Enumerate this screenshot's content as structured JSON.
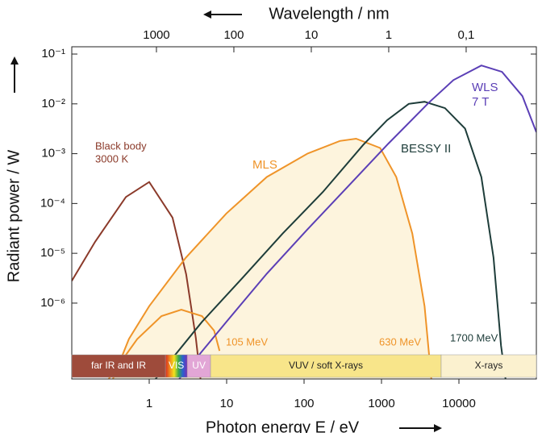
{
  "chart_data": {
    "type": "line",
    "x_scale": "log",
    "y_scale": "log",
    "xlabel": "Photon energy E / eV",
    "ylabel": "Radiant power / W",
    "x2label": "Wavelength / nm",
    "xlim": [
      0.1,
      100000
    ],
    "xticks": [
      1,
      10,
      100,
      1000,
      10000
    ],
    "x2lim": [
      12398.4,
      0.0123984
    ],
    "x2ticks": [
      1000,
      100,
      10,
      1,
      {
        "value": 0.1,
        "label": "0,1"
      }
    ],
    "ylim": [
      3e-08,
      0.14
    ],
    "yticks": [
      {
        "value": 0.1,
        "label": "10⁻¹"
      },
      {
        "value": 0.01,
        "label": "10⁻²"
      },
      {
        "value": 0.001,
        "label": "10⁻³"
      },
      {
        "value": 0.0001,
        "label": "10⁻⁴"
      },
      {
        "value": 1e-05,
        "label": "10⁻⁵"
      },
      {
        "value": 1e-06,
        "label": "10⁻⁶"
      }
    ],
    "series": [
      {
        "name": "Black body",
        "note": "3000 K",
        "color": "#8b3a2a",
        "x": [
          0.1,
          0.2,
          0.5,
          1,
          2,
          3,
          4,
          4.6
        ],
        "values": [
          2.8e-06,
          1.7e-05,
          0.000135,
          0.00027,
          5.2e-05,
          3.8e-06,
          2e-07,
          3e-08
        ]
      },
      {
        "name": "MLS",
        "energy": "630 MeV",
        "color": "#ef9429",
        "fill": "#fdf4dd",
        "x": [
          0.34,
          0.547,
          1,
          2.96,
          9.9,
          33,
          110,
          290,
          470,
          960,
          1550,
          2500,
          3600,
          4400
        ],
        "values": [
          3e-08,
          1.9e-07,
          8.7e-07,
          8.1e-06,
          6.3e-05,
          0.00034,
          0.001,
          0.0018,
          0.002,
          0.0013,
          0.00034,
          2.5e-05,
          8.7e-07,
          3e-08
        ]
      },
      {
        "energy": "105 MeV",
        "color": "#ef9429",
        "x": [
          0.3,
          0.7,
          1.44,
          2.6,
          4.8,
          6.9,
          8.1
        ],
        "values": [
          3e-08,
          1.9e-07,
          5.5e-07,
          7.4e-07,
          5.5e-07,
          2.8e-07,
          1.1e-07
        ]
      },
      {
        "name": "BESSY II",
        "energy": "1700 MeV",
        "color": "#1e3d3a",
        "x": [
          1.21,
          4.8,
          16,
          53,
          175,
          580,
          1180,
          2250,
          3600,
          6600,
          12000,
          19500,
          28000,
          35000,
          40000
        ],
        "values": [
          3e-08,
          4.2e-07,
          3.2e-06,
          2.5e-05,
          0.00017,
          0.0015,
          0.0047,
          0.01,
          0.011,
          0.0082,
          0.0032,
          0.00034,
          8.2e-06,
          1.4e-07,
          3e-08
        ]
      },
      {
        "name": "WLS",
        "note": "7 T",
        "color": "#5b3fb6",
        "x": [
          2.44,
          9.9,
          33,
          110,
          370,
          1230,
          4100,
          8500,
          19500,
          36000,
          66000,
          100000
        ],
        "values": [
          3e-08,
          4.2e-07,
          3.9e-06,
          3e-05,
          0.00022,
          0.0016,
          0.0106,
          0.03,
          0.059,
          0.044,
          0.0143,
          0.0027
        ]
      }
    ],
    "bands": [
      {
        "label": "far IR and IR",
        "from": 0.1,
        "to": 1.62,
        "color": "#9e4b3b"
      },
      {
        "label": "VIS",
        "from": 1.62,
        "to": 3.1,
        "color": "rainbow"
      },
      {
        "label": "UV",
        "from": 3.1,
        "to": 6.2,
        "color": "#e2a6d6"
      },
      {
        "label": "VUV / soft X-rays",
        "from": 6.2,
        "to": 5900,
        "color": "#f8e58a"
      },
      {
        "label": "X-rays",
        "from": 5900,
        "to": 100000,
        "color": "#fbf1cf"
      }
    ]
  }
}
